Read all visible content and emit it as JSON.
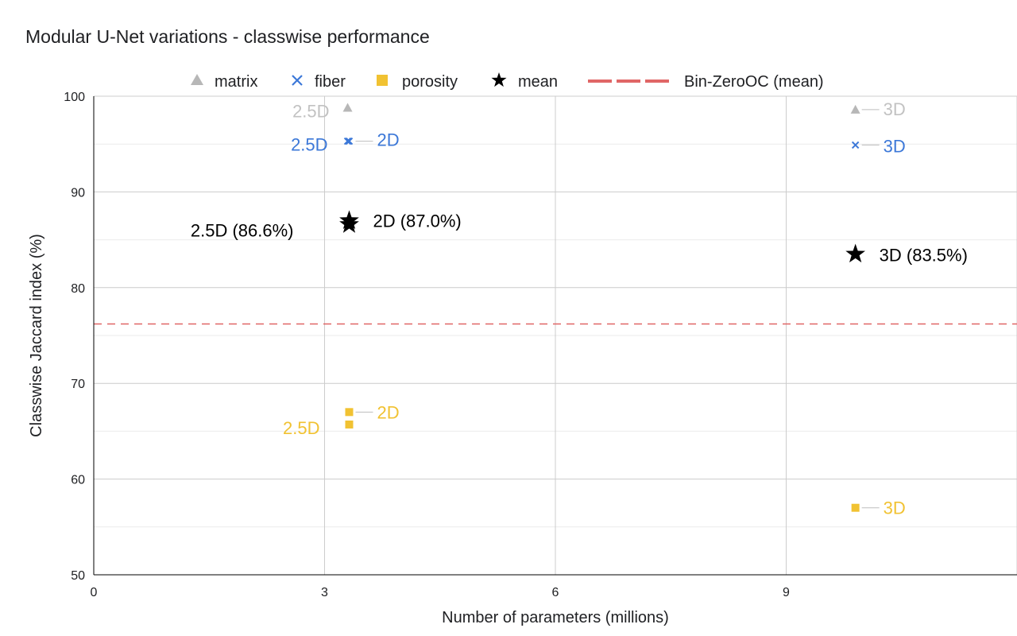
{
  "chart_data": {
    "type": "scatter",
    "title": "Modular U-Net variations - classwise performance",
    "xlabel": "Number of parameters (millions)",
    "ylabel": "Classwise Jaccard index (%)",
    "xlim": [
      0,
      12
    ],
    "ylim": [
      50,
      100
    ],
    "xticks": [
      "0",
      "3",
      "6",
      "9"
    ],
    "yticks": [
      "50",
      "60",
      "70",
      "80",
      "90",
      "100"
    ],
    "legend_position": "top",
    "series": [
      {
        "name": "matrix",
        "color": "#b7b7b7",
        "marker": "triangle",
        "points": [
          {
            "x": 3.3,
            "y": 98.8,
            "label": "2.5D"
          },
          {
            "x": 9.9,
            "y": 98.6,
            "label": "3D"
          }
        ]
      },
      {
        "name": "fiber",
        "color": "#3c78d8",
        "marker": "x",
        "points": [
          {
            "x": 3.3,
            "y": 95.3,
            "label": "2.5D"
          },
          {
            "x": 3.32,
            "y": 95.3,
            "label": "2D"
          },
          {
            "x": 9.9,
            "y": 94.9,
            "label": "3D"
          }
        ]
      },
      {
        "name": "porosity",
        "color": "#f1c232",
        "marker": "square",
        "points": [
          {
            "x": 3.32,
            "y": 67.0,
            "label": "2D"
          },
          {
            "x": 3.32,
            "y": 65.7,
            "label": "2.5D"
          },
          {
            "x": 9.9,
            "y": 57.0,
            "label": "3D"
          }
        ]
      },
      {
        "name": "mean",
        "color": "#000000",
        "marker": "star",
        "points": [
          {
            "x": 3.32,
            "y": 87.0,
            "label": "2D (87.0%)"
          },
          {
            "x": 3.32,
            "y": 86.6,
            "label": "2.5D  (86.6%)"
          },
          {
            "x": 9.9,
            "y": 83.5,
            "label": "3D  (83.5%)"
          }
        ]
      }
    ],
    "reference_lines": [
      {
        "name": "Bin-ZeroOC (mean)",
        "y": 76.2,
        "color": "#e06666",
        "style": "dashed"
      }
    ]
  }
}
